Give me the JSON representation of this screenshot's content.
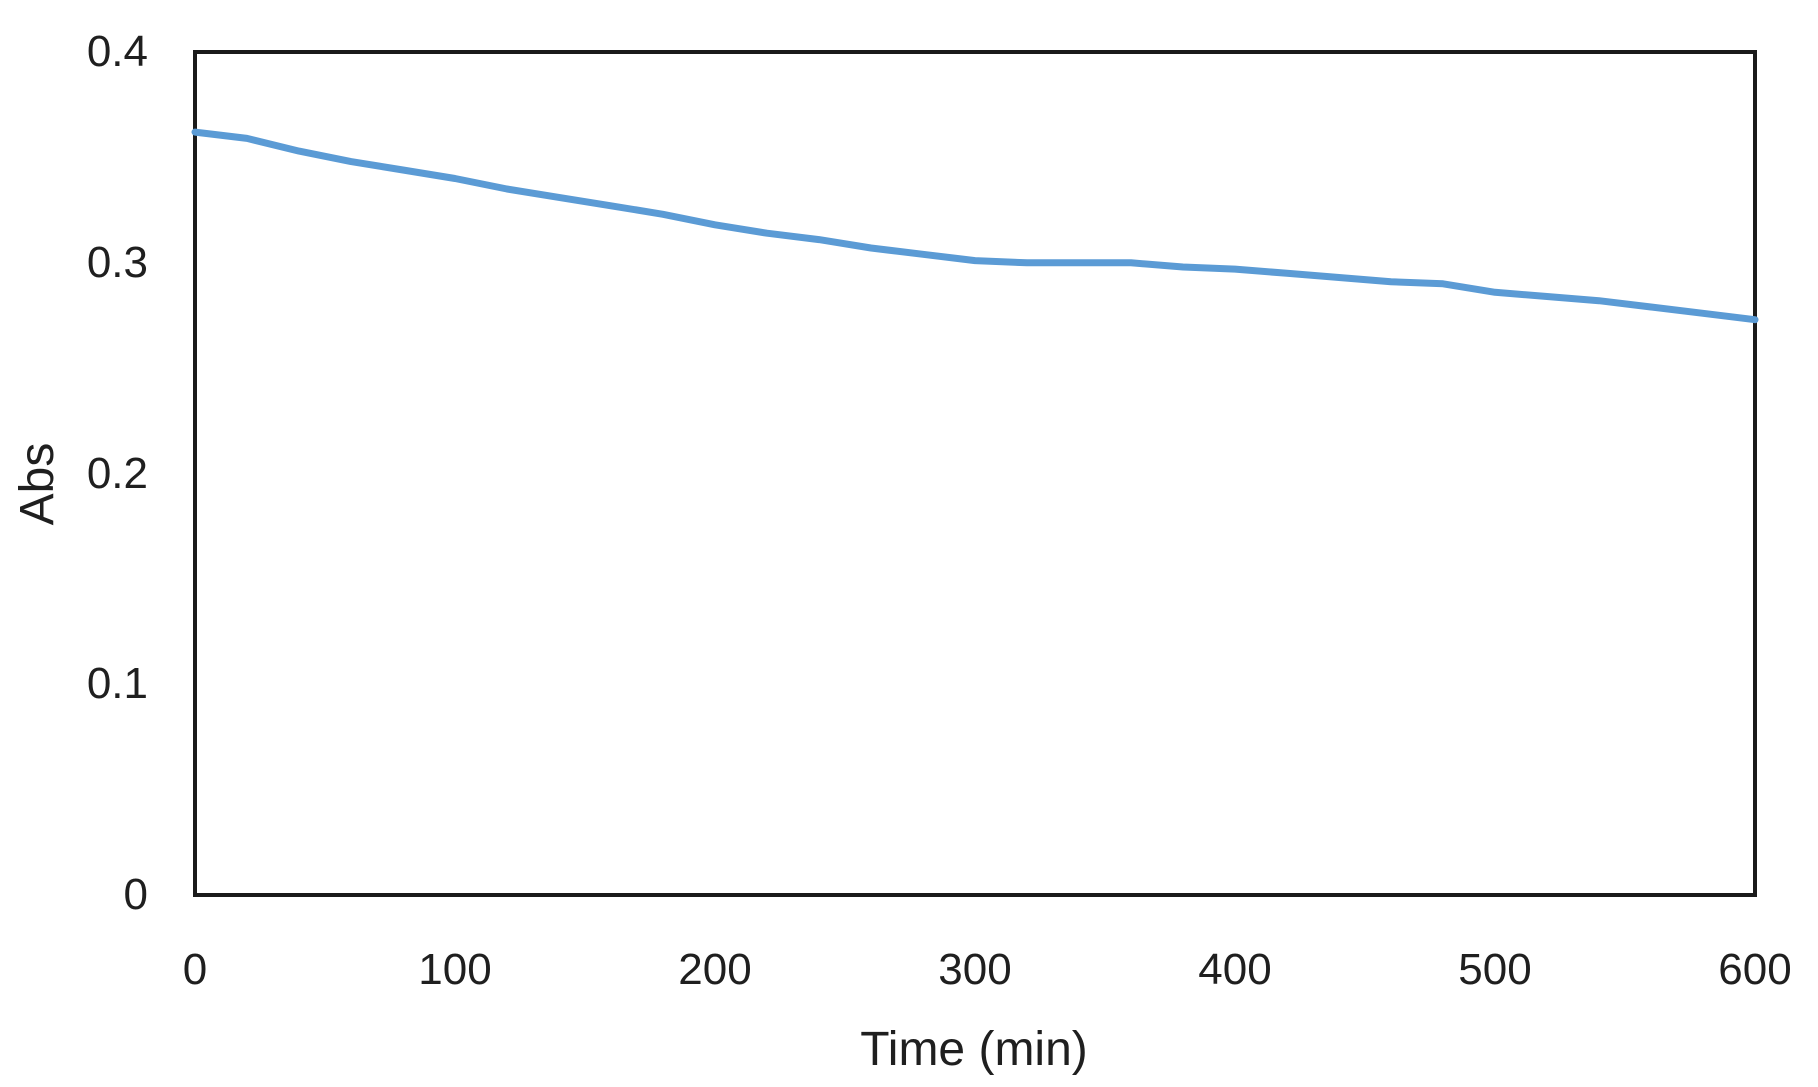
{
  "figure": {
    "background": "#ffffff",
    "text_color": "#1f1f1f"
  },
  "chart_data": {
    "type": "line",
    "title": "",
    "xlabel": "Time (min)",
    "ylabel": "Abs",
    "xlim": [
      0,
      600
    ],
    "ylim": [
      0,
      0.4
    ],
    "x_ticks": [
      0,
      100,
      200,
      300,
      400,
      500,
      600
    ],
    "x_tick_labels": [
      "0",
      "100",
      "200",
      "300",
      "400",
      "500",
      "600"
    ],
    "y_ticks": [
      0,
      0.1,
      0.2,
      0.3,
      0.4
    ],
    "y_tick_labels": [
      "0",
      "0.1",
      "0.2",
      "0.3",
      "0.4"
    ],
    "grid": false,
    "legend_position": "none",
    "line_color": "#5B9BD5",
    "axis_color": "#1a1a1a",
    "series": [
      {
        "name": "Abs",
        "x": [
          0,
          20,
          40,
          60,
          80,
          100,
          120,
          140,
          160,
          180,
          200,
          220,
          240,
          260,
          280,
          300,
          320,
          340,
          360,
          380,
          400,
          420,
          440,
          460,
          480,
          500,
          520,
          540,
          560,
          580,
          600
        ],
        "y": [
          0.362,
          0.359,
          0.353,
          0.348,
          0.344,
          0.34,
          0.335,
          0.331,
          0.327,
          0.323,
          0.318,
          0.314,
          0.311,
          0.307,
          0.304,
          0.301,
          0.3,
          0.3,
          0.3,
          0.298,
          0.297,
          0.295,
          0.293,
          0.291,
          0.29,
          0.286,
          0.284,
          0.282,
          0.279,
          0.276,
          0.273
        ]
      }
    ]
  }
}
